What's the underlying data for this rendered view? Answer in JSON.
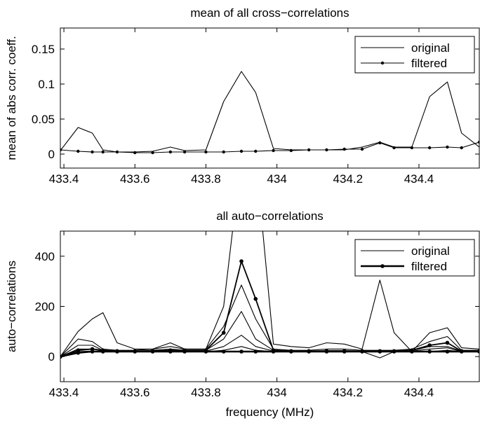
{
  "chart_data": [
    {
      "type": "line",
      "title": "mean of all cross−correlations",
      "xlabel": "",
      "ylabel": "mean of abs corr. coeff.",
      "xlim": [
        433.39,
        434.57
      ],
      "ylim": [
        -0.02,
        0.18
      ],
      "x_ticks": [
        433.4,
        433.6,
        433.8,
        434,
        434.2,
        434.4
      ],
      "x_tick_labels": [
        "433.4",
        "433.6",
        "433.8",
        "434",
        "434.2",
        "434.4"
      ],
      "y_ticks": [
        0,
        0.05,
        0.1,
        0.15
      ],
      "y_tick_labels": [
        "0",
        "0.05",
        "0.1",
        "0.15"
      ],
      "grid": false,
      "legend": {
        "position": "top-right",
        "entries": [
          "original",
          "filtered"
        ]
      },
      "x": [
        433.39,
        433.44,
        433.48,
        433.51,
        433.55,
        433.6,
        433.65,
        433.7,
        433.74,
        433.8,
        433.85,
        433.9,
        433.94,
        433.99,
        434.04,
        434.09,
        434.14,
        434.19,
        434.24,
        434.29,
        434.33,
        434.38,
        434.43,
        434.48,
        434.52,
        434.57
      ],
      "series": [
        {
          "name": "original",
          "values": [
            0.005,
            0.038,
            0.03,
            0.006,
            0.003,
            0.003,
            0.004,
            0.01,
            0.005,
            0.006,
            0.075,
            0.118,
            0.088,
            0.008,
            0.006,
            0.006,
            0.006,
            0.006,
            0.01,
            0.017,
            0.01,
            0.01,
            0.082,
            0.103,
            0.03,
            0.01
          ],
          "marker": "none"
        },
        {
          "name": "filtered",
          "values": [
            0.006,
            0.004,
            0.003,
            0.003,
            0.003,
            0.002,
            0.002,
            0.003,
            0.003,
            0.003,
            0.003,
            0.004,
            0.004,
            0.005,
            0.005,
            0.006,
            0.006,
            0.007,
            0.007,
            0.016,
            0.009,
            0.009,
            0.009,
            0.01,
            0.009,
            0.017
          ],
          "marker": "dot"
        }
      ]
    },
    {
      "type": "line",
      "title": "all auto−correlations",
      "xlabel": "frequency (MHz)",
      "ylabel": "auto−correlations",
      "xlim": [
        433.39,
        434.57
      ],
      "ylim": [
        -100,
        500
      ],
      "x_ticks": [
        433.4,
        433.6,
        433.8,
        434,
        434.2,
        434.4
      ],
      "x_tick_labels": [
        "433.4",
        "433.6",
        "433.8",
        "434",
        "434.2",
        "434.4"
      ],
      "y_ticks": [
        0,
        200,
        400
      ],
      "y_tick_labels": [
        "0",
        "200",
        "400"
      ],
      "grid": false,
      "legend": {
        "position": "top-right",
        "entries": [
          "original",
          "filtered"
        ]
      },
      "x": [
        433.39,
        433.44,
        433.48,
        433.51,
        433.55,
        433.6,
        433.65,
        433.7,
        433.74,
        433.8,
        433.85,
        433.9,
        433.94,
        433.99,
        434.04,
        434.09,
        434.14,
        434.19,
        434.24,
        434.29,
        434.33,
        434.38,
        434.43,
        434.48,
        434.52,
        434.57
      ],
      "series": [
        {
          "name": "original",
          "values": [
            0,
            100,
            150,
            175,
            55,
            30,
            30,
            40,
            30,
            30,
            200,
            800,
            800,
            50,
            40,
            35,
            55,
            50,
            30,
            305,
            95,
            20,
            95,
            115,
            35,
            30
          ],
          "marker": "none"
        },
        {
          "name": "",
          "values": [
            0,
            70,
            60,
            30,
            25,
            25,
            30,
            55,
            30,
            30,
            120,
            285,
            150,
            30,
            25,
            25,
            30,
            30,
            25,
            25,
            25,
            30,
            60,
            80,
            25,
            25
          ],
          "marker": "none"
        },
        {
          "name": "",
          "values": [
            0,
            45,
            45,
            25,
            22,
            22,
            25,
            30,
            25,
            25,
            70,
            180,
            70,
            25,
            22,
            22,
            24,
            24,
            22,
            22,
            22,
            24,
            40,
            40,
            22,
            22
          ],
          "marker": "none"
        },
        {
          "name": "",
          "values": [
            0,
            30,
            30,
            22,
            20,
            20,
            22,
            22,
            22,
            22,
            40,
            85,
            40,
            22,
            20,
            20,
            22,
            22,
            20,
            20,
            20,
            22,
            30,
            35,
            20,
            20
          ],
          "marker": "none"
        },
        {
          "name": "",
          "values": [
            0,
            20,
            22,
            20,
            20,
            20,
            20,
            22,
            20,
            20,
            25,
            40,
            25,
            20,
            20,
            20,
            20,
            20,
            20,
            -5,
            20,
            20,
            20,
            25,
            20,
            20
          ],
          "marker": "none"
        },
        {
          "name": "filtered",
          "values": [
            0,
            15,
            20,
            20,
            20,
            20,
            20,
            20,
            20,
            20,
            20,
            20,
            20,
            20,
            20,
            20,
            20,
            20,
            20,
            20,
            20,
            20,
            20,
            20,
            20,
            20
          ],
          "marker": "dot"
        },
        {
          "name": "",
          "values": [
            0,
            25,
            30,
            25,
            22,
            22,
            22,
            25,
            25,
            25,
            95,
            380,
            230,
            25,
            22,
            22,
            22,
            22,
            22,
            22,
            22,
            25,
            45,
            55,
            22,
            22
          ],
          "marker": "dot"
        }
      ]
    }
  ]
}
